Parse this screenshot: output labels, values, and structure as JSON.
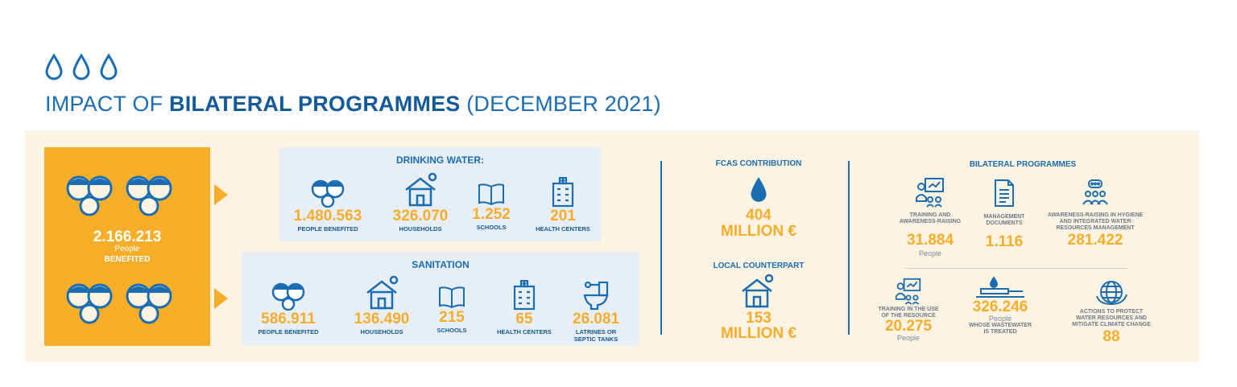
{
  "title": {
    "prefix": "IMPACT OF ",
    "bold": "BILATERAL PROGRAMMES",
    "suffix": " (DECEMBER 2021)"
  },
  "total": {
    "value": "2.166.213",
    "sub": "People",
    "label": "BENEFITED"
  },
  "drinking_water": {
    "title": "DRINKING WATER:",
    "items": [
      {
        "icon": "people-icon",
        "value": "1.480.563",
        "label": "PEOPLE BENEFITED"
      },
      {
        "icon": "house-icon",
        "value": "326.070",
        "label": "HOUSEHOLDS"
      },
      {
        "icon": "book-icon",
        "value": "1.252",
        "label": "SCHOOLS"
      },
      {
        "icon": "hospital-icon",
        "value": "201",
        "label": "HEALTH CENTERS"
      }
    ]
  },
  "sanitation": {
    "title": "SANITATION",
    "items": [
      {
        "icon": "people-icon",
        "value": "586.911",
        "label": "PEOPLE BENEFITED"
      },
      {
        "icon": "house-icon",
        "value": "136.490",
        "label": "HOUSEHOLDS"
      },
      {
        "icon": "book-icon",
        "value": "215",
        "label": "SCHOOLS"
      },
      {
        "icon": "hospital-icon",
        "value": "65",
        "label": "HEALTH CENTERS"
      },
      {
        "icon": "toilet-icon",
        "value": "26.081",
        "label1": "LATRINES OR",
        "label2": "SEPTIC TANKS"
      }
    ]
  },
  "fcas": {
    "title": "FCAS CONTRIBUTION",
    "value1": "404",
    "value2": "MILLION €"
  },
  "local": {
    "title": "LOCAL COUNTERPART",
    "value1": "153",
    "value2": "MILLION €"
  },
  "bilateral": {
    "title": "BILATERAL PROGRAMMES",
    "training": {
      "l1": "TRAINING AND",
      "l2": "AWARENESS-RAISING",
      "value": "31.884",
      "sub": "People"
    },
    "management": {
      "l1": "MANAGEMENT",
      "l2": "DOCUMENTS",
      "value": "1.116"
    },
    "hygiene": {
      "l1": "AWARENESS-RAISING IN HYGIENE",
      "l2": "AND INTEGRATED WATER",
      "l3": "RESOURCES MANAGEMENT",
      "value": "281.422"
    },
    "resource": {
      "l1": "TRAINING IN THE USE",
      "l2": "OF THE RESOURCE",
      "value": "20.275",
      "sub": "People"
    },
    "wastewater": {
      "value": "326.246",
      "sub": "People",
      "l1": "WHOSE WASTEWATER",
      "l2": "IS TREATED"
    },
    "climate": {
      "l1": "ACTIONS TO PROTECT",
      "l2": "WATER RESOURCES AND",
      "l3": "MITIGATE CLIMATE CHANGE",
      "value": "88"
    }
  },
  "colors": {
    "blue": "#1a6db0",
    "orange": "#f6ad2a",
    "cream": "#fdf3e2",
    "lightblue": "#e7eef6"
  }
}
